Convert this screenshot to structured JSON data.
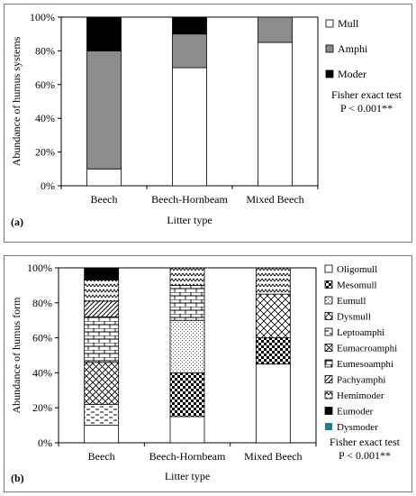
{
  "chart_data": [
    {
      "type": "bar",
      "stacked": true,
      "panel_label": "(a)",
      "categories": [
        "Beech",
        "Beech-Hornbeam",
        "Mixed Beech"
      ],
      "xlabel": "Litter type",
      "ylabel": "Abundance of humus  systems",
      "ylim": [
        0,
        100
      ],
      "y_ticks": [
        "0%",
        "20%",
        "40%",
        "60%",
        "80%",
        "100%"
      ],
      "legend_position": "right",
      "series": [
        {
          "name": "Mull",
          "values": [
            10,
            70,
            85
          ],
          "color": "#ffffff",
          "pattern": "solid"
        },
        {
          "name": "Amphi",
          "values": [
            70,
            20,
            15
          ],
          "color": "#8c8c8c",
          "pattern": "solid"
        },
        {
          "name": "Moder",
          "values": [
            20,
            10,
            0
          ],
          "color": "#000000",
          "pattern": "solid"
        }
      ],
      "annotation": [
        "Fisher exact test",
        "P < 0.001**"
      ]
    },
    {
      "type": "bar",
      "stacked": true,
      "panel_label": "(b)",
      "categories": [
        "Beech",
        "Beech-Hornbeam",
        "Mixed Beech"
      ],
      "xlabel": "Litter type",
      "ylabel": "Abundance of humus form",
      "ylim": [
        0,
        100
      ],
      "y_ticks": [
        "0%",
        "20%",
        "40%",
        "60%",
        "80%",
        "100%"
      ],
      "legend_position": "right",
      "series": [
        {
          "name": "Oligomull",
          "values": [
            10,
            15,
            45
          ],
          "color": "#ffffff",
          "pattern": "solid"
        },
        {
          "name": "Mesomull",
          "values": [
            0,
            25,
            15
          ],
          "color": "#000000",
          "pattern": "checker"
        },
        {
          "name": "Eumull",
          "values": [
            0,
            30,
            0
          ],
          "color": "#000000",
          "pattern": "dots"
        },
        {
          "name": "Dysmull",
          "values": [
            0,
            0,
            25
          ],
          "color": "#000000",
          "pattern": "diamond"
        },
        {
          "name": "Leptoamphi",
          "values": [
            12,
            0,
            0
          ],
          "color": "#000000",
          "pattern": "dashes"
        },
        {
          "name": "Eumacroamphi",
          "values": [
            24,
            0,
            0
          ],
          "color": "#000000",
          "pattern": "crosshatch"
        },
        {
          "name": "Eumesoamphi",
          "values": [
            26,
            20,
            0
          ],
          "color": "#000000",
          "pattern": "bricks"
        },
        {
          "name": "Pachyamphi",
          "values": [
            9,
            0,
            0
          ],
          "color": "#000000",
          "pattern": "diagonal"
        },
        {
          "name": "Hemimoder",
          "values": [
            12,
            10,
            15
          ],
          "color": "#000000",
          "pattern": "zigzag"
        },
        {
          "name": "Eumoder",
          "values": [
            7,
            0,
            0
          ],
          "color": "#000000",
          "pattern": "solid"
        },
        {
          "name": "Dysmoder",
          "values": [
            0,
            0,
            0
          ],
          "color": "#1f7f8f",
          "pattern": "solid"
        }
      ],
      "annotation": [
        "Fisher exact test",
        "P < 0.001**"
      ]
    }
  ]
}
